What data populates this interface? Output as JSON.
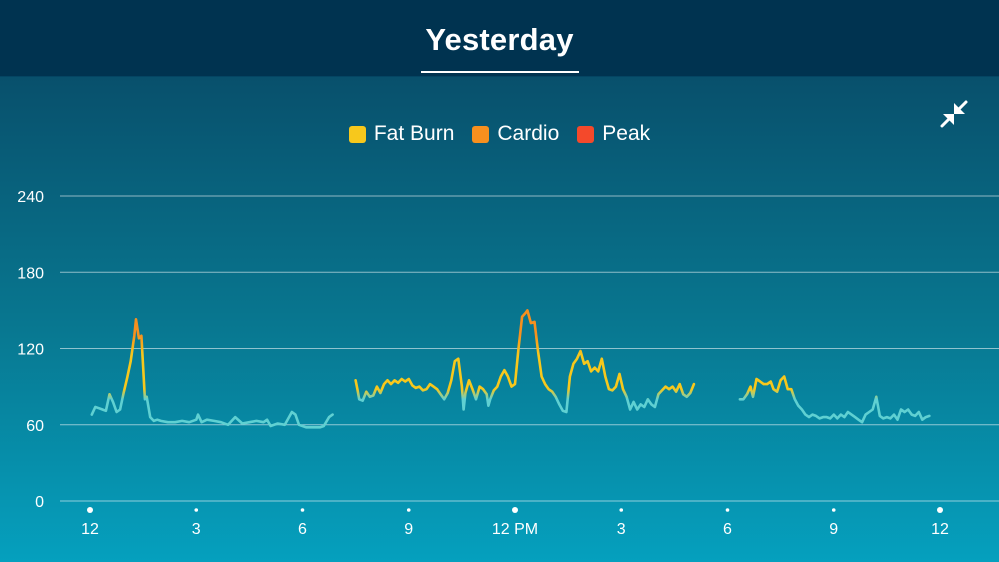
{
  "header": {
    "title": "Yesterday"
  },
  "legend": [
    {
      "label": "Fat Burn",
      "color": "#f7c81c"
    },
    {
      "label": "Cardio",
      "color": "#f7901e"
    },
    {
      "label": "Peak",
      "color": "#f4492b"
    }
  ],
  "colors": {
    "resting_line": "#5fd0d2",
    "fat_burn": "#f7c81c",
    "cardio": "#f7901e",
    "peak": "#f4492b"
  },
  "icons": {
    "collapse": "collapse-arrows-icon"
  },
  "chart_data": {
    "type": "line",
    "title": "",
    "xlabel": "",
    "ylabel": "",
    "ylim": [
      0,
      240
    ],
    "y_ticks": [
      0,
      60,
      120,
      180,
      240
    ],
    "y_tick_labels": [
      "0",
      "60",
      "120",
      "180",
      "240"
    ],
    "xlim": [
      0,
      24
    ],
    "x_ticks": [
      0,
      3,
      6,
      9,
      12,
      15,
      18,
      21,
      24
    ],
    "x_tick_labels": [
      "12",
      "3",
      "6",
      "9",
      "12 PM",
      "3",
      "6",
      "9",
      "12"
    ],
    "grid": true,
    "legend_position": "top-center",
    "zone_thresholds": {
      "fat_burn": 88,
      "cardio": 123,
      "peak": 150
    },
    "series": [
      {
        "segments": [
          [
            [
              0.05,
              68
            ],
            [
              0.15,
              74
            ],
            [
              0.25,
              73
            ],
            [
              0.35,
              72
            ],
            [
              0.45,
              71
            ],
            [
              0.55,
              84
            ],
            [
              0.65,
              78
            ],
            [
              0.75,
              70
            ],
            [
              0.85,
              72
            ],
            [
              0.95,
              85
            ],
            [
              1.05,
              97
            ],
            [
              1.15,
              110
            ],
            [
              1.25,
              130
            ],
            [
              1.3,
              143
            ],
            [
              1.38,
              128
            ],
            [
              1.45,
              130
            ],
            [
              1.5,
              106
            ],
            [
              1.55,
              80
            ],
            [
              1.6,
              82
            ],
            [
              1.7,
              66
            ],
            [
              1.8,
              63
            ],
            [
              1.9,
              64
            ],
            [
              2.0,
              63
            ],
            [
              2.2,
              62
            ],
            [
              2.4,
              62
            ],
            [
              2.6,
              63
            ],
            [
              2.8,
              62
            ],
            [
              3.0,
              64
            ],
            [
              3.05,
              68
            ],
            [
              3.15,
              62
            ],
            [
              3.3,
              64
            ],
            [
              3.5,
              63
            ],
            [
              3.7,
              62
            ],
            [
              3.9,
              60
            ],
            [
              4.1,
              66
            ],
            [
              4.3,
              61
            ],
            [
              4.5,
              62
            ],
            [
              4.7,
              63
            ],
            [
              4.9,
              62
            ],
            [
              5.0,
              64
            ],
            [
              5.1,
              59
            ],
            [
              5.3,
              61
            ],
            [
              5.5,
              60
            ],
            [
              5.7,
              70
            ],
            [
              5.8,
              68
            ],
            [
              5.9,
              60
            ],
            [
              6.1,
              58
            ],
            [
              6.3,
              58
            ],
            [
              6.5,
              58
            ],
            [
              6.6,
              59
            ],
            [
              6.75,
              66
            ],
            [
              6.85,
              68
            ]
          ],
          [
            [
              7.5,
              95
            ],
            [
              7.55,
              88
            ],
            [
              7.6,
              80
            ],
            [
              7.7,
              79
            ],
            [
              7.8,
              86
            ],
            [
              7.9,
              82
            ],
            [
              8.0,
              83
            ],
            [
              8.1,
              90
            ],
            [
              8.2,
              85
            ],
            [
              8.3,
              92
            ],
            [
              8.4,
              95
            ],
            [
              8.5,
              92
            ],
            [
              8.6,
              95
            ],
            [
              8.7,
              93
            ],
            [
              8.8,
              96
            ],
            [
              8.9,
              94
            ],
            [
              9.0,
              96
            ],
            [
              9.1,
              91
            ],
            [
              9.2,
              89
            ],
            [
              9.3,
              90
            ],
            [
              9.4,
              87
            ],
            [
              9.5,
              88
            ],
            [
              9.6,
              92
            ],
            [
              9.7,
              90
            ],
            [
              9.8,
              88
            ],
            [
              9.9,
              84
            ],
            [
              10.0,
              80
            ],
            [
              10.1,
              85
            ],
            [
              10.2,
              95
            ],
            [
              10.3,
              110
            ],
            [
              10.4,
              112
            ],
            [
              10.5,
              90
            ],
            [
              10.55,
              72
            ],
            [
              10.6,
              85
            ],
            [
              10.7,
              95
            ],
            [
              10.8,
              88
            ],
            [
              10.9,
              80
            ],
            [
              11.0,
              90
            ],
            [
              11.1,
              88
            ],
            [
              11.2,
              84
            ],
            [
              11.25,
              75
            ],
            [
              11.3,
              80
            ],
            [
              11.4,
              87
            ],
            [
              11.5,
              90
            ],
            [
              11.6,
              98
            ],
            [
              11.7,
              103
            ],
            [
              11.8,
              98
            ],
            [
              11.9,
              90
            ],
            [
              12.0,
              92
            ],
            [
              12.1,
              120
            ],
            [
              12.2,
              145
            ],
            [
              12.3,
              148
            ],
            [
              12.35,
              150
            ],
            [
              12.45,
              140
            ],
            [
              12.55,
              141
            ],
            [
              12.65,
              118
            ],
            [
              12.75,
              98
            ],
            [
              12.85,
              92
            ],
            [
              12.95,
              88
            ],
            [
              13.05,
              86
            ],
            [
              13.15,
              82
            ],
            [
              13.25,
              76
            ],
            [
              13.35,
              71
            ],
            [
              13.45,
              70
            ],
            [
              13.55,
              98
            ],
            [
              13.65,
              108
            ],
            [
              13.75,
              112
            ],
            [
              13.85,
              118
            ],
            [
              13.95,
              108
            ],
            [
              14.05,
              110
            ],
            [
              14.15,
              102
            ],
            [
              14.25,
              105
            ],
            [
              14.35,
              102
            ],
            [
              14.45,
              112
            ],
            [
              14.55,
              98
            ],
            [
              14.65,
              88
            ],
            [
              14.75,
              87
            ],
            [
              14.85,
              90
            ],
            [
              14.95,
              100
            ],
            [
              15.05,
              88
            ],
            [
              15.15,
              82
            ],
            [
              15.25,
              72
            ],
            [
              15.35,
              78
            ],
            [
              15.45,
              72
            ],
            [
              15.55,
              76
            ],
            [
              15.65,
              74
            ],
            [
              15.75,
              80
            ],
            [
              15.85,
              76
            ],
            [
              15.95,
              74
            ],
            [
              16.05,
              84
            ],
            [
              16.15,
              87
            ],
            [
              16.25,
              90
            ],
            [
              16.35,
              88
            ],
            [
              16.45,
              90
            ],
            [
              16.55,
              86
            ],
            [
              16.65,
              92
            ],
            [
              16.75,
              84
            ],
            [
              16.85,
              82
            ],
            [
              16.95,
              85
            ],
            [
              17.05,
              92
            ]
          ],
          [
            [
              18.35,
              80
            ],
            [
              18.45,
              80
            ],
            [
              18.55,
              84
            ],
            [
              18.65,
              90
            ],
            [
              18.72,
              82
            ],
            [
              18.82,
              96
            ],
            [
              18.92,
              94
            ],
            [
              19.02,
              92
            ],
            [
              19.12,
              92
            ],
            [
              19.22,
              94
            ],
            [
              19.3,
              88
            ],
            [
              19.4,
              86
            ],
            [
              19.5,
              95
            ],
            [
              19.6,
              98
            ],
            [
              19.7,
              88
            ],
            [
              19.8,
              88
            ],
            [
              19.9,
              80
            ],
            [
              20.0,
              75
            ],
            [
              20.1,
              72
            ],
            [
              20.2,
              68
            ],
            [
              20.3,
              66
            ],
            [
              20.4,
              68
            ],
            [
              20.5,
              67
            ],
            [
              20.6,
              65
            ],
            [
              20.7,
              66
            ],
            [
              20.8,
              66
            ],
            [
              20.9,
              65
            ],
            [
              21.0,
              68
            ],
            [
              21.1,
              65
            ],
            [
              21.2,
              68
            ],
            [
              21.3,
              66
            ],
            [
              21.4,
              70
            ],
            [
              21.5,
              68
            ],
            [
              21.6,
              66
            ],
            [
              21.7,
              64
            ],
            [
              21.8,
              62
            ],
            [
              21.9,
              68
            ],
            [
              22.0,
              70
            ],
            [
              22.1,
              72
            ],
            [
              22.2,
              82
            ],
            [
              22.3,
              67
            ],
            [
              22.4,
              65
            ],
            [
              22.5,
              66
            ],
            [
              22.6,
              65
            ],
            [
              22.7,
              68
            ],
            [
              22.8,
              64
            ],
            [
              22.9,
              72
            ],
            [
              23.0,
              70
            ],
            [
              23.1,
              72
            ],
            [
              23.2,
              68
            ],
            [
              23.3,
              67
            ],
            [
              23.4,
              70
            ],
            [
              23.5,
              64
            ],
            [
              23.6,
              66
            ],
            [
              23.7,
              67
            ]
          ]
        ]
      }
    ]
  }
}
